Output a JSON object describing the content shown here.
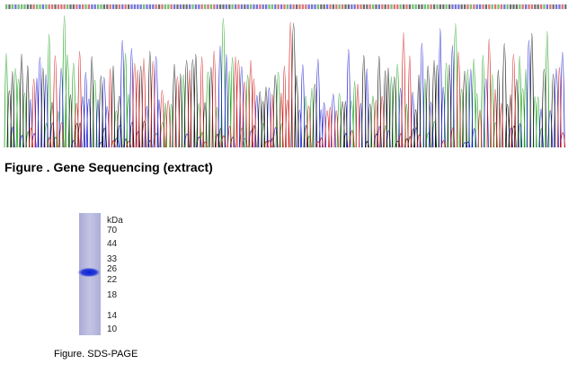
{
  "figure1": {
    "caption": "Figure . Gene Sequencing (extract)"
  },
  "figure2": {
    "caption": "Figure. SDS-PAGE",
    "unit": "kDa",
    "markers": [
      "70",
      "44",
      "33",
      "26",
      "22",
      "18",
      "14",
      "10"
    ]
  }
}
